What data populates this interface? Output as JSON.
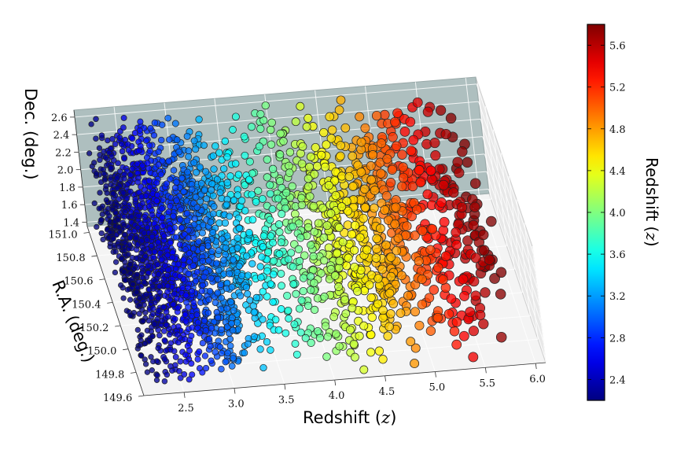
{
  "chart_data": {
    "type": "scatter",
    "dimensions": 3,
    "axes": {
      "x": {
        "label": "Redshift (z)",
        "ticks": [
          "2.5",
          "3.0",
          "3.5",
          "4.0",
          "4.5",
          "5.0",
          "5.5",
          "6.0"
        ],
        "range": [
          2.1,
          6.1
        ]
      },
      "y": {
        "label": "R.A. (deg.)",
        "ticks": [
          "149.6",
          "149.8",
          "150.0",
          "150.2",
          "150.4",
          "150.6",
          "150.8",
          "151.0"
        ],
        "range": [
          149.6,
          151.05
        ]
      },
      "z": {
        "label": "Dec. (deg.)",
        "ticks": [
          "1.4",
          "1.6",
          "1.8",
          "2.0",
          "2.2",
          "2.4",
          "2.6"
        ],
        "range": [
          1.35,
          2.68
        ]
      }
    },
    "colorbar": {
      "label": "Redshift (z)",
      "ticks": [
        "2.4",
        "2.8",
        "3.2",
        "3.6",
        "4.0",
        "4.4",
        "4.8",
        "5.2",
        "5.6"
      ],
      "range": [
        2.2,
        5.8
      ],
      "colormap": "jet"
    },
    "grid": true,
    "back_pane_color": "#aebfbf",
    "floor_pane_color": "#f4f4f4",
    "point_edge_color": "#222222",
    "series": [
      {
        "x": [
          2.2,
          2.3,
          2.4,
          2.5,
          2.6,
          2.7,
          2.8,
          2.9,
          3.0,
          3.1,
          3.2,
          3.3,
          3.4,
          3.5,
          3.6,
          3.7,
          3.8,
          3.9,
          4.0,
          4.1,
          4.2,
          4.3,
          4.4,
          4.5,
          4.6,
          4.7,
          4.8,
          4.9,
          5.0,
          5.1,
          5.2,
          5.3,
          5.4,
          5.5,
          5.6,
          5.7,
          5.8
        ],
        "point_counts": [
          150,
          160,
          170,
          175,
          170,
          160,
          150,
          140,
          130,
          110,
          90,
          70,
          50,
          40,
          35,
          35,
          40,
          45,
          45,
          50,
          50,
          55,
          55,
          55,
          55,
          55,
          50,
          45,
          45,
          40,
          40,
          35,
          30,
          30,
          28,
          24,
          20
        ]
      }
    ]
  }
}
